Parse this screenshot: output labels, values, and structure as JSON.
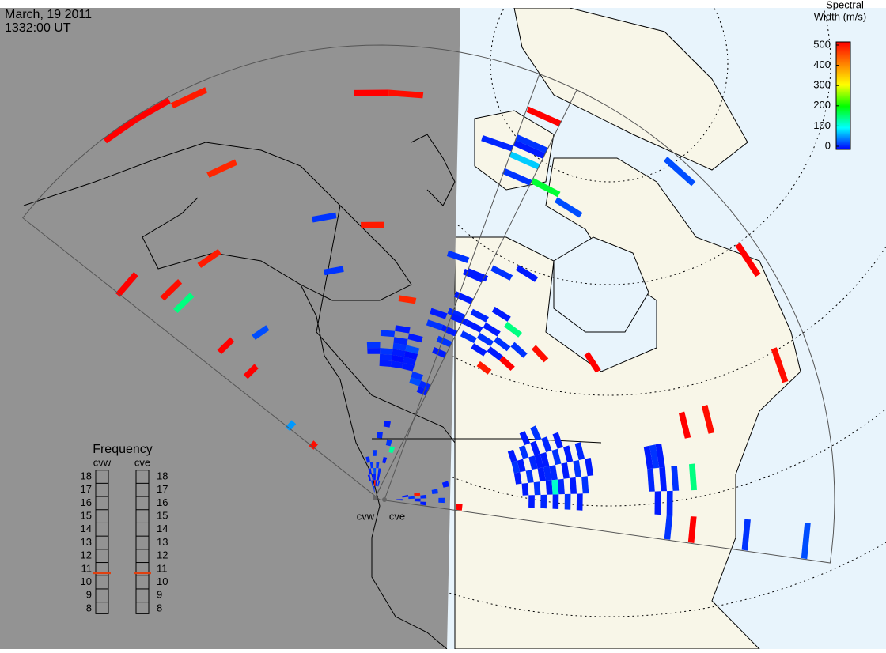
{
  "header": {
    "date": "March, 19 2011",
    "time": "1332:00 UT"
  },
  "colorbar": {
    "title_lines": [
      "Spectral",
      "Width (m/s)"
    ],
    "ticks": [
      0,
      100,
      200,
      300,
      400,
      500
    ],
    "lim": [
      0,
      500
    ],
    "colors": [
      "#0000ff",
      "#00ffff",
      "#00ff00",
      "#ffff00",
      "#ff8000",
      "#ff0000"
    ]
  },
  "frequency": {
    "title": "Frequency",
    "ticks": [
      8,
      9,
      10,
      11,
      12,
      13,
      14,
      15,
      16,
      17,
      18
    ],
    "radars": [
      {
        "name": "cvw",
        "value": 10.7
      },
      {
        "name": "cve",
        "value": 10.7
      }
    ]
  },
  "radars": [
    {
      "name": "cvw",
      "cells": [
        [
          3,
          74,
          500
        ],
        [
          4,
          74,
          500
        ],
        [
          5,
          73,
          480
        ],
        [
          10,
          67,
          500
        ],
        [
          11,
          67,
          490
        ],
        [
          5,
          60,
          470
        ],
        [
          0,
          54,
          500
        ],
        [
          1,
          48,
          490
        ],
        [
          3,
          48,
          480
        ],
        [
          1,
          35,
          500
        ],
        [
          1,
          29,
          500
        ],
        [
          0,
          13,
          490
        ],
        [
          10,
          45,
          480
        ],
        [
          12,
          33,
          470
        ],
        [
          10,
          2,
          480
        ],
        [
          1,
          45,
          150
        ],
        [
          14,
          8,
          140
        ],
        [
          8,
          47,
          20
        ],
        [
          3,
          33,
          30
        ],
        [
          0,
          18,
          60
        ],
        [
          8,
          38,
          20
        ],
        [
          11,
          22,
          10
        ],
        [
          11,
          23,
          15
        ],
        [
          11,
          24,
          20
        ],
        [
          12,
          22,
          10
        ],
        [
          12,
          23,
          5
        ],
        [
          12,
          24,
          10
        ],
        [
          12,
          25,
          20
        ],
        [
          12,
          26,
          15
        ],
        [
          13,
          22,
          10
        ],
        [
          13,
          23,
          10
        ],
        [
          13,
          24,
          5
        ],
        [
          13,
          25,
          30
        ],
        [
          11,
          27,
          20
        ],
        [
          12,
          28,
          10
        ],
        [
          13,
          27,
          10
        ],
        [
          10,
          25,
          20
        ],
        [
          10,
          24,
          10
        ],
        [
          14,
          20,
          30
        ],
        [
          14,
          21,
          20
        ],
        [
          15,
          19,
          10
        ],
        [
          15,
          20,
          15
        ],
        [
          7,
          3,
          10
        ],
        [
          8,
          2,
          20
        ],
        [
          8,
          4,
          10
        ],
        [
          9,
          1,
          15
        ],
        [
          9,
          3,
          10
        ],
        [
          9,
          5,
          20
        ],
        [
          10,
          3,
          10
        ],
        [
          10,
          4,
          30
        ],
        [
          11,
          2,
          10
        ],
        [
          11,
          5,
          20
        ],
        [
          12,
          3,
          10
        ],
        [
          12,
          4,
          15
        ],
        [
          13,
          2,
          20
        ],
        [
          13,
          6,
          10
        ],
        [
          8,
          6,
          15
        ],
        [
          10,
          7,
          20
        ],
        [
          11,
          10,
          15
        ],
        [
          12,
          12,
          10
        ],
        [
          13,
          9,
          20
        ],
        [
          15,
          64,
          20
        ],
        [
          15,
          63,
          10
        ],
        [
          15,
          61,
          80
        ],
        [
          15,
          58,
          20
        ],
        [
          14,
          62,
          15
        ],
        [
          15,
          69,
          500
        ],
        [
          15,
          26,
          10
        ],
        [
          15,
          28,
          20
        ],
        [
          15,
          30,
          10
        ],
        [
          15,
          33,
          15
        ],
        [
          15,
          36,
          10
        ],
        [
          14,
          30,
          20
        ],
        [
          14,
          32,
          10
        ],
        [
          14,
          42,
          20
        ],
        [
          15,
          40,
          10
        ]
      ]
    },
    {
      "name": "cve",
      "cells": [
        [
          1,
          58,
          180
        ],
        [
          2,
          57,
          30
        ],
        [
          0,
          32,
          10
        ],
        [
          1,
          30,
          20
        ],
        [
          1,
          32,
          10
        ],
        [
          1,
          34,
          15
        ],
        [
          2,
          29,
          10
        ],
        [
          2,
          31,
          20
        ],
        [
          2,
          33,
          10
        ],
        [
          3,
          30,
          10
        ],
        [
          3,
          32,
          20
        ],
        [
          2,
          36,
          10
        ],
        [
          3,
          35,
          150
        ],
        [
          0,
          40,
          10
        ],
        [
          1,
          42,
          20
        ],
        [
          2,
          44,
          10
        ],
        [
          3,
          27,
          480
        ],
        [
          4,
          30,
          500
        ],
        [
          4,
          33,
          20
        ],
        [
          5,
          35,
          490
        ],
        [
          10,
          22,
          10
        ],
        [
          10,
          24,
          20
        ],
        [
          10,
          26,
          10
        ],
        [
          10,
          28,
          15
        ],
        [
          10,
          30,
          10
        ],
        [
          11,
          22,
          20
        ],
        [
          11,
          23,
          10
        ],
        [
          11,
          25,
          15
        ],
        [
          11,
          27,
          10
        ],
        [
          11,
          29,
          20
        ],
        [
          11,
          31,
          10
        ],
        [
          11,
          33,
          15
        ],
        [
          12,
          22,
          10
        ],
        [
          12,
          24,
          20
        ],
        [
          12,
          26,
          10
        ],
        [
          12,
          28,
          15
        ],
        [
          12,
          30,
          10
        ],
        [
          12,
          32,
          20
        ],
        [
          12,
          34,
          10
        ],
        [
          13,
          23,
          10
        ],
        [
          13,
          25,
          20
        ],
        [
          13,
          27,
          10
        ],
        [
          13,
          29,
          15
        ],
        [
          13,
          31,
          10
        ],
        [
          13,
          33,
          20
        ],
        [
          14,
          24,
          10
        ],
        [
          14,
          26,
          15
        ],
        [
          14,
          28,
          10
        ],
        [
          14,
          30,
          20
        ],
        [
          14,
          32,
          10
        ],
        [
          9,
          25,
          10
        ],
        [
          9,
          27,
          20
        ],
        [
          13,
          28,
          120
        ],
        [
          11,
          26,
          10
        ],
        [
          12,
          27,
          15
        ],
        [
          12,
          3,
          10
        ],
        [
          13,
          4,
          20
        ],
        [
          14,
          2,
          10
        ],
        [
          13,
          6,
          15
        ],
        [
          14,
          5,
          10
        ],
        [
          12,
          8,
          20
        ],
        [
          11,
          10,
          10
        ],
        [
          14,
          9,
          20
        ],
        [
          15,
          6,
          10
        ],
        [
          12,
          5,
          480
        ],
        [
          15,
          12,
          500
        ],
        [
          12,
          44,
          10
        ],
        [
          12,
          45,
          20
        ],
        [
          12,
          46,
          10
        ],
        [
          13,
          44,
          15
        ],
        [
          13,
          46,
          10
        ],
        [
          13,
          48,
          20
        ],
        [
          14,
          45,
          10
        ],
        [
          14,
          47,
          15
        ],
        [
          13,
          51,
          150
        ],
        [
          15,
          47,
          20
        ],
        [
          15,
          51,
          500
        ],
        [
          15,
          60,
          20
        ],
        [
          15,
          70,
          30
        ],
        [
          11,
          51,
          500
        ],
        [
          11,
          55,
          490
        ],
        [
          7,
          41,
          500
        ],
        [
          10,
          69,
          490
        ],
        [
          7,
          72,
          500
        ],
        [
          4,
          73,
          30
        ]
      ]
    }
  ]
}
